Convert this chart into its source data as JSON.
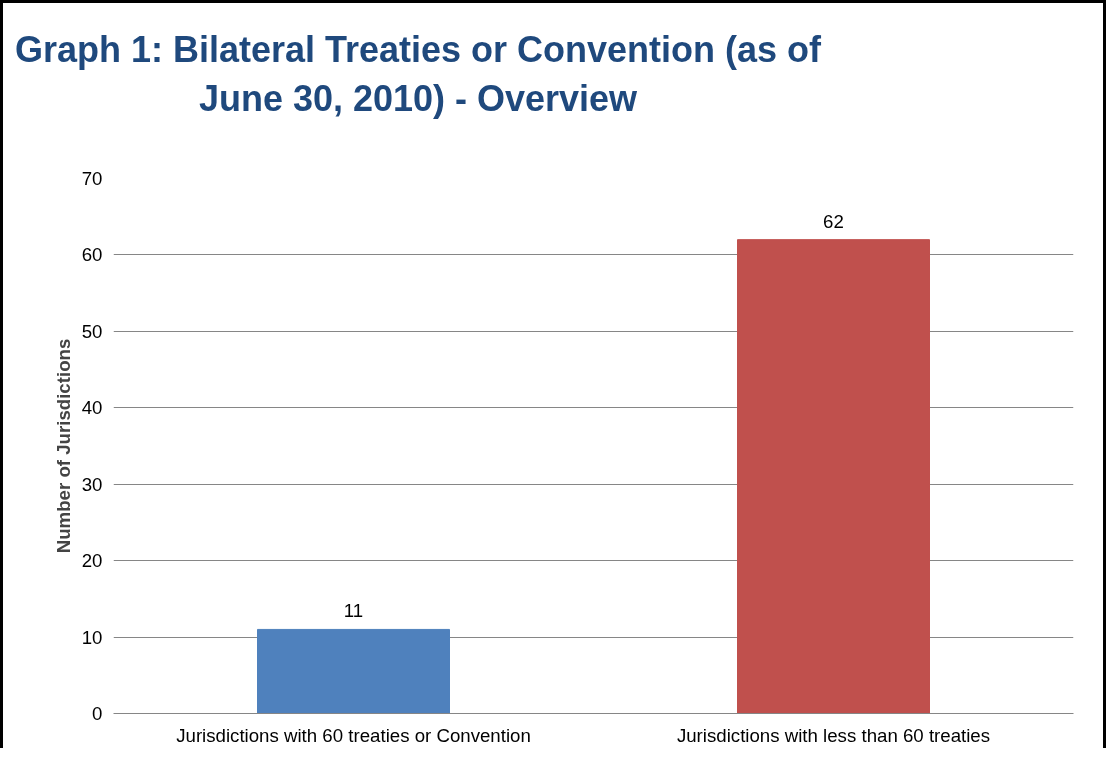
{
  "chart_data": {
    "type": "bar",
    "title": "Graph 1: Bilateral Treaties or Convention (as of June 30, 2010) - Overview",
    "ylabel": "Number of Jurisdictions",
    "categories": [
      "Jurisdictions with 60 treaties or Convention",
      "Jurisdictions with less than 60 treaties"
    ],
    "values": [
      11,
      62
    ],
    "colors": [
      "#4f81bd",
      "#c0504d"
    ],
    "ylim": [
      0,
      70
    ],
    "yticks": [
      0,
      10,
      20,
      30,
      40,
      50,
      60,
      70
    ],
    "grid": "y",
    "data_labels": true
  }
}
